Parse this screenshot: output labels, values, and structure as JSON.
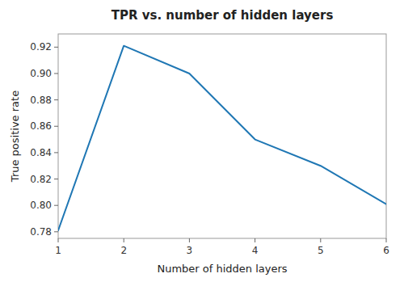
{
  "chart_data": {
    "type": "line",
    "title": "TPR vs. number of hidden layers",
    "x_label": "Number of hidden layers",
    "y_label": "True positive rate",
    "x": [
      1,
      2,
      3,
      4,
      5,
      6
    ],
    "values": [
      0.781,
      0.921,
      0.9,
      0.85,
      0.83,
      0.801
    ],
    "color": "#1f77b4",
    "xlim": [
      1,
      6
    ],
    "ylim": [
      0.775,
      0.93
    ],
    "xticks": [
      1,
      2,
      3,
      4,
      5,
      6
    ],
    "yticks": [
      0.78,
      {
        "value": 0.8,
        "label": "0.80"
      },
      0.82,
      0.84,
      0.86,
      0.88,
      {
        "value": 0.9,
        "label": "0.90"
      },
      0.92
    ]
  }
}
